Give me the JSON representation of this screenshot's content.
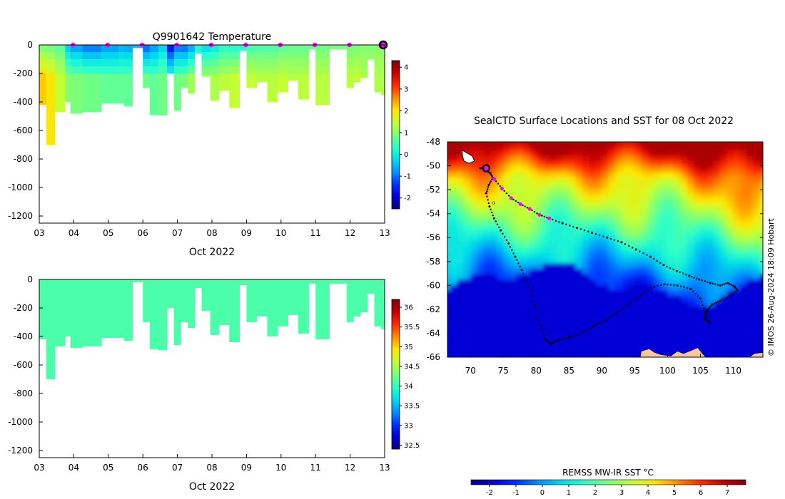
{
  "colors": {
    "jet": [
      "#00007f",
      "#0000d4",
      "#0033ff",
      "#0094ff",
      "#00ddea",
      "#2fffc7",
      "#7cff79",
      "#c1ff36",
      "#ffe600",
      "#ff8d00",
      "#ff2b00",
      "#c70000",
      "#7f0000"
    ],
    "land": "#f7c79a",
    "track": "#000000",
    "marker": "#ff00ff"
  },
  "chart_data": [
    {
      "type": "heatmap",
      "name": "temperature-section",
      "title": "Q9901642  Temperature",
      "xlabel": "Oct 2022",
      "ylabel": "",
      "xlim": [
        3,
        13
      ],
      "ylim": [
        -1250,
        0
      ],
      "xticks": [
        "03",
        "04",
        "05",
        "06",
        "07",
        "08",
        "09",
        "10",
        "11",
        "12",
        "13"
      ],
      "yticks": [
        "0",
        "-200",
        "-400",
        "-600",
        "-800",
        "-1000",
        "-1200"
      ],
      "colorbar": {
        "range": [
          -2.5,
          4.3
        ],
        "ticks": [
          "4",
          "3",
          "2",
          "1",
          "0",
          "-1",
          "-2"
        ]
      },
      "surface_markers_x": [
        4,
        5,
        6,
        7,
        8,
        9,
        10,
        11,
        12,
        13
      ],
      "profiles": {
        "start": [
          3.0,
          3.2,
          3.45,
          3.75,
          3.9,
          4.25,
          4.8,
          5.3,
          5.45,
          5.7,
          6.0,
          6.2,
          6.45,
          6.7,
          6.9,
          7.1,
          7.3,
          7.5,
          7.7,
          7.95,
          8.2,
          8.5,
          8.8,
          9.0,
          9.3,
          9.6,
          9.9,
          10.2,
          10.5,
          10.8,
          11.0,
          11.4,
          11.9,
          12.1,
          12.3,
          12.5,
          12.7,
          12.9
        ],
        "end": [
          3.2,
          3.45,
          3.75,
          3.9,
          4.25,
          4.8,
          5.3,
          5.45,
          5.7,
          6.0,
          6.2,
          6.45,
          6.7,
          6.9,
          7.1,
          7.3,
          7.5,
          7.7,
          7.95,
          8.2,
          8.5,
          8.8,
          9.0,
          9.3,
          9.6,
          9.9,
          10.2,
          10.5,
          10.8,
          11.0,
          11.4,
          11.9,
          12.1,
          12.3,
          12.5,
          12.7,
          12.9,
          13.05
        ],
        "max_depth": [
          -420,
          -700,
          -470,
          -400,
          -480,
          -470,
          -410,
          -410,
          -430,
          -20,
          -300,
          -490,
          -495,
          -200,
          -460,
          -300,
          -340,
          -60,
          -220,
          -390,
          -320,
          -440,
          -40,
          -300,
          -260,
          -400,
          -330,
          -250,
          -380,
          -30,
          -420,
          -30,
          -300,
          -260,
          -230,
          -100,
          -330,
          -350
        ],
        "surface_temp": [
          0.7,
          0.6,
          0.5,
          -0.6,
          -1.0,
          -1.3,
          -1.0,
          -0.8,
          -0.9,
          -0.6,
          -1.4,
          -1.0,
          -0.5,
          -2.2,
          -1.3,
          -1.4,
          -1.0,
          0.0,
          -0.5,
          -0.3,
          0.1,
          0.0,
          0.1,
          0.3,
          0.4,
          0.4,
          0.5,
          0.6,
          0.6,
          0.7,
          0.7,
          0.8,
          0.8,
          0.8,
          0.9,
          0.9,
          1.0,
          0.9
        ],
        "deep_temp": [
          2.2,
          2.0,
          1.5,
          1.0,
          0.9,
          0.8,
          0.7,
          0.7,
          0.7,
          0.7,
          0.8,
          0.7,
          0.8,
          0.5,
          0.8,
          0.9,
          1.2,
          1.0,
          1.3,
          1.3,
          1.4,
          1.5,
          1.1,
          1.5,
          1.4,
          1.4,
          1.5,
          1.4,
          1.4,
          1.3,
          1.4,
          1.3,
          1.4,
          1.5,
          1.3,
          1.2,
          1.3,
          1.3
        ]
      }
    },
    {
      "type": "heatmap",
      "name": "salinity-section",
      "title": "",
      "xlabel": "Oct 2022",
      "ylabel": "",
      "xlim": [
        3,
        13
      ],
      "ylim": [
        -1250,
        0
      ],
      "xticks": [
        "03",
        "04",
        "05",
        "06",
        "07",
        "08",
        "09",
        "10",
        "11",
        "12",
        "13"
      ],
      "yticks": [
        "0",
        "-200",
        "-400",
        "-600",
        "-800",
        "-1000",
        "-1200"
      ],
      "colorbar": {
        "range": [
          32.4,
          36.2
        ],
        "ticks": [
          "36",
          "35.5",
          "35",
          "34.5",
          "34",
          "33.5",
          "33",
          "32.5"
        ]
      },
      "uniform_value": 34.1
    },
    {
      "type": "heatmap",
      "name": "sst-map",
      "title": "SealCTD Surface Locations and SST for 08 Oct 2022",
      "xlabel": "",
      "ylabel": "",
      "xlim": [
        66.5,
        114.5
      ],
      "ylim": [
        -66,
        -48
      ],
      "xticks": [
        "70",
        "75",
        "80",
        "85",
        "90",
        "95",
        "100",
        "105",
        "110"
      ],
      "yticks": [
        "-48",
        "-50",
        "-52",
        "-54",
        "-56",
        "-58",
        "-60",
        "-62",
        "-64",
        "-66"
      ],
      "track_lon": [
        72.4,
        73.6,
        74.8,
        76.2,
        77.6,
        79.0,
        80.5,
        82.0,
        84.0,
        86.2,
        88.5,
        90.8,
        93.0,
        95.2,
        97.4,
        99.4,
        101.4,
        103.3,
        104.8,
        106.5,
        108.0,
        109.2,
        110.2,
        110.6,
        109.5,
        108.0,
        106.8,
        106.0,
        105.6,
        106.4,
        105.7,
        105.0,
        103.5,
        101.5,
        99.5,
        97.5,
        95.8,
        94.0,
        92.2,
        90.5,
        89.0,
        87.5,
        86.0,
        84.6,
        83.2,
        82.2,
        81.4,
        80.6,
        79.8,
        78.8,
        77.8,
        76.8,
        75.8,
        74.6,
        73.6,
        72.9,
        72.4,
        72.8,
        73.4,
        73.0,
        72.3,
        71.8,
        71.5,
        72.4
      ],
      "track_lat": [
        -50.2,
        -51.1,
        -51.9,
        -52.7,
        -53.2,
        -53.6,
        -54.1,
        -54.4,
        -54.8,
        -55.2,
        -55.6,
        -56.0,
        -56.4,
        -57.0,
        -57.6,
        -58.3,
        -58.8,
        -59.2,
        -59.5,
        -59.8,
        -60.0,
        -59.8,
        -60.1,
        -60.4,
        -60.9,
        -61.3,
        -61.6,
        -62.1,
        -62.8,
        -63.1,
        -62.2,
        -61.1,
        -60.3,
        -60.0,
        -59.9,
        -60.2,
        -60.9,
        -61.6,
        -62.3,
        -62.9,
        -63.3,
        -63.8,
        -64.2,
        -64.4,
        -64.6,
        -64.9,
        -64.5,
        -63.3,
        -61.7,
        -60.0,
        -58.7,
        -57.6,
        -56.5,
        -55.4,
        -54.4,
        -53.4,
        -52.3,
        -51.6,
        -51.0,
        -50.6,
        -50.4,
        -50.2,
        -50.2,
        -50.2
      ],
      "daily_markers_lon": [
        73.6,
        74.8,
        76.2,
        77.6,
        79.0,
        80.5,
        82.0
      ],
      "daily_markers_lat": [
        -51.1,
        -51.9,
        -52.7,
        -53.2,
        -53.6,
        -54.1,
        -54.4
      ],
      "current_location": [
        72.4,
        -50.2
      ],
      "colorbar": {
        "label": "REMSS MW-IR SST °C",
        "range": [
          -2.7,
          7.7
        ],
        "ticks": [
          "-2",
          "-1",
          "0",
          "1",
          "2",
          "3",
          "4",
          "5",
          "6",
          "7"
        ]
      },
      "credit": "© IMOS 26-Aug-2024 18:09 Hobart"
    }
  ]
}
